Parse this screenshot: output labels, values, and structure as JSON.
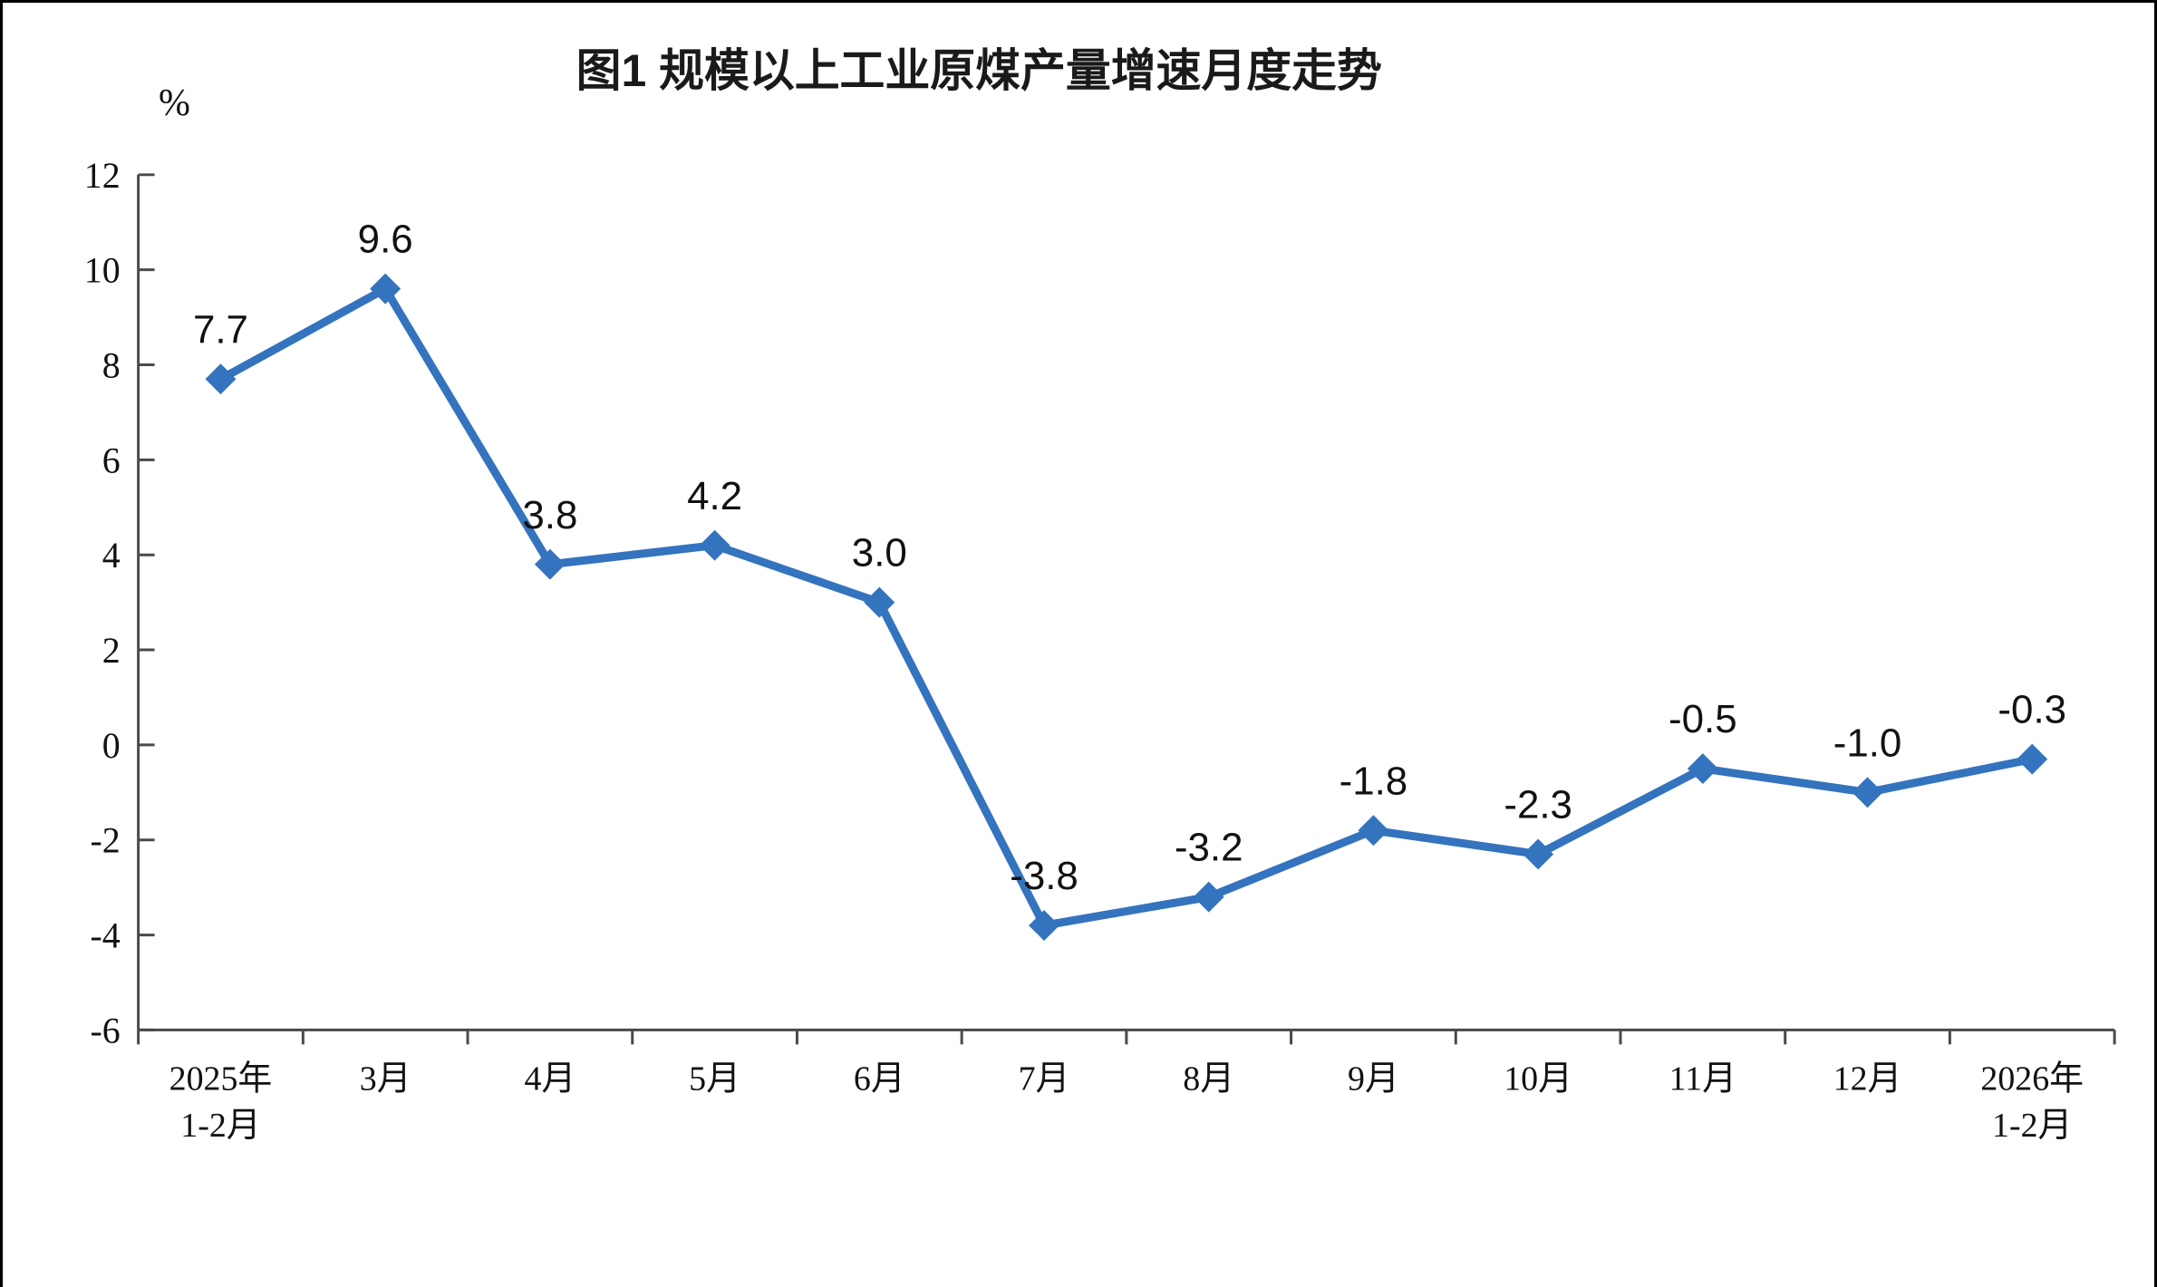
{
  "window": {
    "background": "#ffffff",
    "frame_border_color": "#000000"
  },
  "chart_data": {
    "type": "line",
    "title": "图1 规模以上工业原煤产量增速月度走势",
    "unit_label": "%",
    "categories": [
      "2025年\n1-2月",
      "3月",
      "4月",
      "5月",
      "6月",
      "7月",
      "8月",
      "9月",
      "10月",
      "11月",
      "12月",
      "2026年\n1-2月"
    ],
    "values": [
      7.7,
      9.6,
      3.8,
      4.2,
      3.0,
      -3.8,
      -3.2,
      -1.8,
      -2.3,
      -0.5,
      -1.0,
      -0.3
    ],
    "data_labels": [
      "7.7",
      "9.6",
      "3.8",
      "4.2",
      "3.0",
      "-3.8",
      "-3.2",
      "-1.8",
      "-2.3",
      "-0.5",
      "-1.0",
      "-0.3"
    ],
    "series_name": "规模以上工业原煤产量增速",
    "xlabel": "",
    "ylabel": "%",
    "ylim": [
      -6,
      12
    ],
    "ytick_step": 2,
    "yticks": [
      12,
      10,
      8,
      6,
      4,
      2,
      0,
      -2,
      -4,
      -6
    ],
    "grid": false,
    "legend": "none",
    "line_color": "#3473BE",
    "marker_style": "diamond",
    "axis_color": "#4A4A4A",
    "label_color": "#111111"
  }
}
